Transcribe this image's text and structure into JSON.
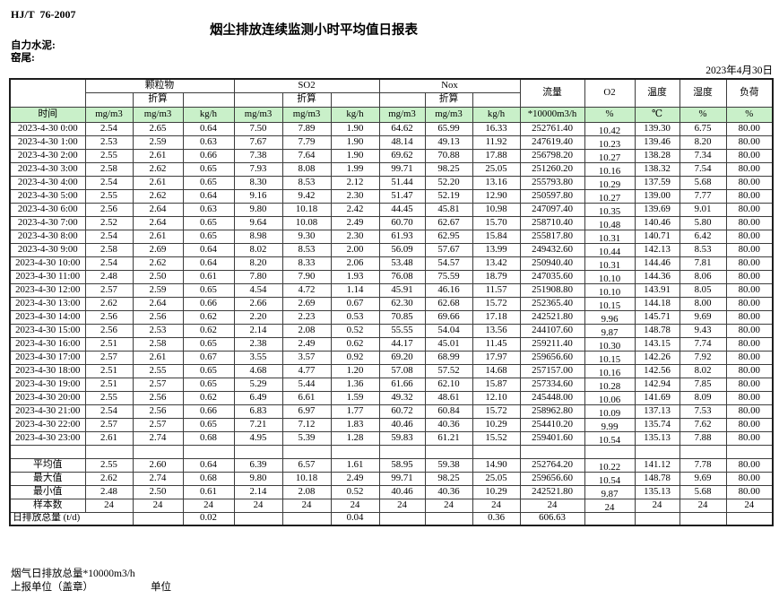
{
  "colors": {
    "unit_row_bg": "#c9f0c9"
  },
  "page": {
    "standard_label": "HJ/T  76-2007",
    "title": "烟尘排放连续监测小时平均值日报表",
    "company": "自力水泥:",
    "location": "窑尾:",
    "date": "2023年4月30日"
  },
  "table": {
    "time_label": "时间",
    "group_labels": [
      "颗粒物",
      "SO2",
      "Nox"
    ],
    "converted_label": "折算",
    "flow_label": "流量",
    "o2_label": "O2",
    "temp_label": "温度",
    "humidity_label": "湿度",
    "load_label": "负荷",
    "units": [
      "mg/m3",
      "mg/m3",
      "kg/h",
      "mg/m3",
      "mg/m3",
      "kg/h",
      "mg/m3",
      "mg/m3",
      "kg/h",
      "*10000m3/h",
      "%",
      "℃",
      "%",
      "%"
    ],
    "rows": [
      {
        "time": "2023-4-30 0:00",
        "values": [
          "2.54",
          "2.65",
          "0.64",
          "7.50",
          "7.89",
          "1.90",
          "64.62",
          "65.99",
          "16.33",
          "252761.40",
          "10.42",
          "139.30",
          "6.75",
          "80.00"
        ]
      },
      {
        "time": "2023-4-30 1:00",
        "values": [
          "2.53",
          "2.59",
          "0.63",
          "7.67",
          "7.79",
          "1.90",
          "48.14",
          "49.13",
          "11.92",
          "247619.40",
          "10.23",
          "139.46",
          "8.20",
          "80.00"
        ]
      },
      {
        "time": "2023-4-30 2:00",
        "values": [
          "2.55",
          "2.61",
          "0.66",
          "7.38",
          "7.64",
          "1.90",
          "69.62",
          "70.88",
          "17.88",
          "256798.20",
          "10.27",
          "138.28",
          "7.34",
          "80.00"
        ]
      },
      {
        "time": "2023-4-30 3:00",
        "values": [
          "2.58",
          "2.62",
          "0.65",
          "7.93",
          "8.08",
          "1.99",
          "99.71",
          "98.25",
          "25.05",
          "251260.20",
          "10.16",
          "138.32",
          "7.54",
          "80.00"
        ]
      },
      {
        "time": "2023-4-30 4:00",
        "values": [
          "2.54",
          "2.61",
          "0.65",
          "8.30",
          "8.53",
          "2.12",
          "51.44",
          "52.20",
          "13.16",
          "255793.80",
          "10.29",
          "137.59",
          "5.68",
          "80.00"
        ]
      },
      {
        "time": "2023-4-30 5:00",
        "values": [
          "2.55",
          "2.62",
          "0.64",
          "9.16",
          "9.42",
          "2.30",
          "51.47",
          "52.19",
          "12.90",
          "250597.80",
          "10.27",
          "139.00",
          "7.77",
          "80.00"
        ]
      },
      {
        "time": "2023-4-30 6:00",
        "values": [
          "2.56",
          "2.64",
          "0.63",
          "9.80",
          "10.18",
          "2.42",
          "44.45",
          "45.81",
          "10.98",
          "247097.40",
          "10.35",
          "139.69",
          "9.01",
          "80.00"
        ]
      },
      {
        "time": "2023-4-30 7:00",
        "values": [
          "2.52",
          "2.64",
          "0.65",
          "9.64",
          "10.08",
          "2.49",
          "60.70",
          "62.67",
          "15.70",
          "258710.40",
          "10.48",
          "140.46",
          "5.80",
          "80.00"
        ]
      },
      {
        "time": "2023-4-30 8:00",
        "values": [
          "2.54",
          "2.61",
          "0.65",
          "8.98",
          "9.30",
          "2.30",
          "61.93",
          "62.95",
          "15.84",
          "255817.80",
          "10.31",
          "140.71",
          "6.42",
          "80.00"
        ]
      },
      {
        "time": "2023-4-30 9:00",
        "values": [
          "2.58",
          "2.69",
          "0.64",
          "8.02",
          "8.53",
          "2.00",
          "56.09",
          "57.67",
          "13.99",
          "249432.60",
          "10.44",
          "142.13",
          "8.53",
          "80.00"
        ]
      },
      {
        "time": "2023-4-30 10:00",
        "values": [
          "2.54",
          "2.62",
          "0.64",
          "8.20",
          "8.33",
          "2.06",
          "53.48",
          "54.57",
          "13.42",
          "250940.40",
          "10.31",
          "144.46",
          "7.81",
          "80.00"
        ]
      },
      {
        "time": "2023-4-30 11:00",
        "values": [
          "2.48",
          "2.50",
          "0.61",
          "7.80",
          "7.90",
          "1.93",
          "76.08",
          "75.59",
          "18.79",
          "247035.60",
          "10.10",
          "144.36",
          "8.06",
          "80.00"
        ]
      },
      {
        "time": "2023-4-30 12:00",
        "values": [
          "2.57",
          "2.59",
          "0.65",
          "4.54",
          "4.72",
          "1.14",
          "45.91",
          "46.16",
          "11.57",
          "251908.80",
          "10.10",
          "143.91",
          "8.05",
          "80.00"
        ]
      },
      {
        "time": "2023-4-30 13:00",
        "values": [
          "2.62",
          "2.64",
          "0.66",
          "2.66",
          "2.69",
          "0.67",
          "62.30",
          "62.68",
          "15.72",
          "252365.40",
          "10.15",
          "144.18",
          "8.00",
          "80.00"
        ]
      },
      {
        "time": "2023-4-30 14:00",
        "values": [
          "2.56",
          "2.56",
          "0.62",
          "2.20",
          "2.23",
          "0.53",
          "70.85",
          "69.66",
          "17.18",
          "242521.80",
          "9.96",
          "145.71",
          "9.69",
          "80.00"
        ]
      },
      {
        "time": "2023-4-30 15:00",
        "values": [
          "2.56",
          "2.53",
          "0.62",
          "2.14",
          "2.08",
          "0.52",
          "55.55",
          "54.04",
          "13.56",
          "244107.60",
          "9.87",
          "148.78",
          "9.43",
          "80.00"
        ]
      },
      {
        "time": "2023-4-30 16:00",
        "values": [
          "2.51",
          "2.58",
          "0.65",
          "2.38",
          "2.49",
          "0.62",
          "44.17",
          "45.01",
          "11.45",
          "259211.40",
          "10.30",
          "143.15",
          "7.74",
          "80.00"
        ]
      },
      {
        "time": "2023-4-30 17:00",
        "values": [
          "2.57",
          "2.61",
          "0.67",
          "3.55",
          "3.57",
          "0.92",
          "69.20",
          "68.99",
          "17.97",
          "259656.60",
          "10.15",
          "142.26",
          "7.92",
          "80.00"
        ]
      },
      {
        "time": "2023-4-30 18:00",
        "values": [
          "2.51",
          "2.55",
          "0.65",
          "4.68",
          "4.77",
          "1.20",
          "57.08",
          "57.52",
          "14.68",
          "257157.00",
          "10.16",
          "142.56",
          "8.02",
          "80.00"
        ]
      },
      {
        "time": "2023-4-30 19:00",
        "values": [
          "2.51",
          "2.57",
          "0.65",
          "5.29",
          "5.44",
          "1.36",
          "61.66",
          "62.10",
          "15.87",
          "257334.60",
          "10.28",
          "142.94",
          "7.85",
          "80.00"
        ]
      },
      {
        "time": "2023-4-30 20:00",
        "values": [
          "2.55",
          "2.56",
          "0.62",
          "6.49",
          "6.61",
          "1.59",
          "49.32",
          "48.61",
          "12.10",
          "245448.00",
          "10.06",
          "141.69",
          "8.09",
          "80.00"
        ]
      },
      {
        "time": "2023-4-30 21:00",
        "values": [
          "2.54",
          "2.56",
          "0.66",
          "6.83",
          "6.97",
          "1.77",
          "60.72",
          "60.84",
          "15.72",
          "258962.80",
          "10.09",
          "137.13",
          "7.53",
          "80.00"
        ]
      },
      {
        "time": "2023-4-30 22:00",
        "values": [
          "2.57",
          "2.57",
          "0.65",
          "7.21",
          "7.12",
          "1.83",
          "40.46",
          "40.36",
          "10.29",
          "254410.20",
          "9.99",
          "135.74",
          "7.62",
          "80.00"
        ]
      },
      {
        "time": "2023-4-30 23:00",
        "values": [
          "2.61",
          "2.74",
          "0.68",
          "4.95",
          "5.39",
          "1.28",
          "59.83",
          "61.21",
          "15.52",
          "259401.60",
          "10.54",
          "135.13",
          "7.88",
          "80.00"
        ]
      }
    ],
    "summary": [
      {
        "label": "平均值",
        "values": [
          "2.55",
          "2.60",
          "0.64",
          "6.39",
          "6.57",
          "1.61",
          "58.95",
          "59.38",
          "14.90",
          "252764.20",
          "10.22",
          "141.12",
          "7.78",
          "80.00"
        ]
      },
      {
        "label": "最大值",
        "values": [
          "2.62",
          "2.74",
          "0.68",
          "9.80",
          "10.18",
          "2.49",
          "99.71",
          "98.25",
          "25.05",
          "259656.60",
          "10.54",
          "148.78",
          "9.69",
          "80.00"
        ]
      },
      {
        "label": "最小值",
        "values": [
          "2.48",
          "2.50",
          "0.61",
          "2.14",
          "2.08",
          "0.52",
          "40.46",
          "40.36",
          "10.29",
          "242521.80",
          "9.87",
          "135.13",
          "5.68",
          "80.00"
        ]
      },
      {
        "label": "样本数",
        "values": [
          "24",
          "24",
          "24",
          "24",
          "24",
          "24",
          "24",
          "24",
          "24",
          "24",
          "24",
          "24",
          "24",
          "24"
        ]
      }
    ],
    "daily_total": {
      "label": "日排放总量 (t/d)",
      "values": [
        "",
        "0.02",
        "",
        "",
        "0.04",
        "",
        "",
        "0.36",
        "606.63",
        "",
        "",
        "",
        ""
      ]
    }
  },
  "footer": {
    "line1": "烟气日排放总量*10000m3/h",
    "report_unit_label": "上报单位（盖章）",
    "unit_label": "单位"
  }
}
